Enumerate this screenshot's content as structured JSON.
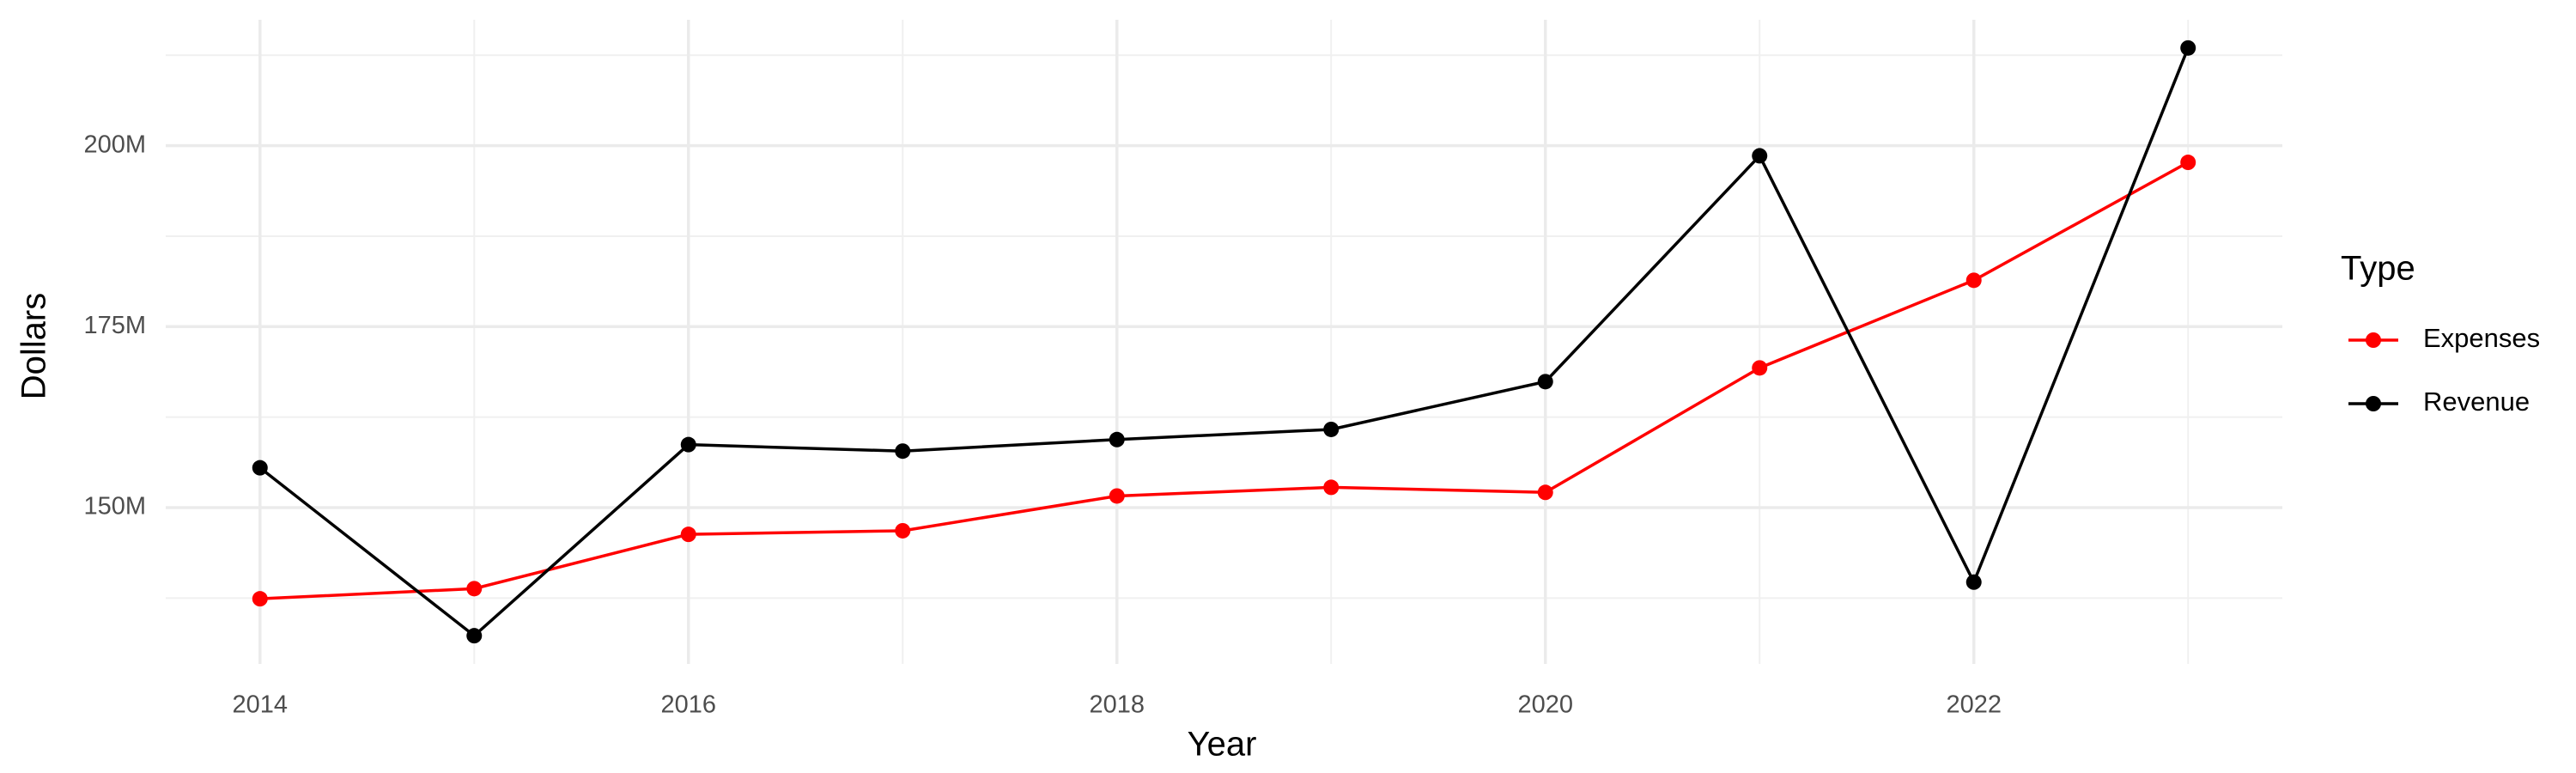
{
  "chart_data": {
    "type": "line",
    "x_label": "Year",
    "y_label": "Dollars",
    "legend_title": "Type",
    "x": [
      2014,
      2015,
      2016,
      2017,
      2018,
      2019,
      2020,
      2021,
      2022,
      2023
    ],
    "series": [
      {
        "name": "Expenses",
        "color": "#ff0000",
        "values": [
          137400000,
          138800000,
          146300000,
          146800000,
          151600000,
          152800000,
          152100000,
          169300000,
          181400000,
          197700000
        ]
      },
      {
        "name": "Revenue",
        "color": "#000000",
        "values": [
          155500000,
          132300000,
          158700000,
          157800000,
          159400000,
          160800000,
          167400000,
          198600000,
          139700000,
          213500000
        ]
      }
    ],
    "xlim": [
      2013.56,
      2023.44
    ],
    "xticks": [
      2014,
      2016,
      2018,
      2020,
      2022
    ],
    "ylim": [
      128400000,
      217400000
    ],
    "yticks": [
      {
        "value": 150000000,
        "label": "150M"
      },
      {
        "value": 175000000,
        "label": "175M"
      },
      {
        "value": 200000000,
        "label": "200M"
      }
    ],
    "grid": true,
    "legend": "right"
  }
}
